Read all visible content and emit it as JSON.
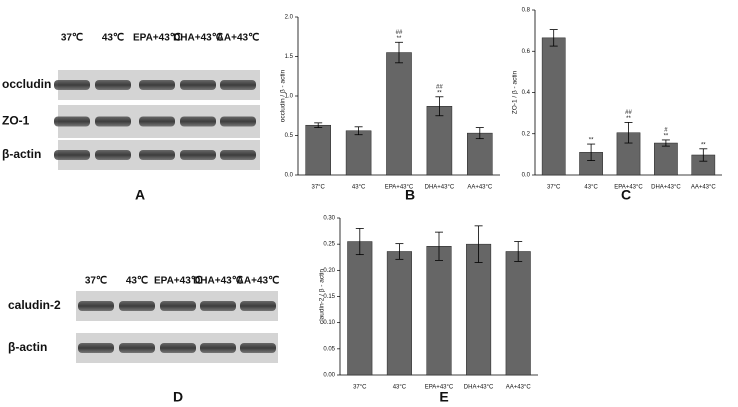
{
  "blot_a": {
    "label": "A",
    "columns": [
      "37℃",
      "43℃",
      "EPA+43℃",
      "DHA+43℃",
      "AA+43℃"
    ],
    "rows": [
      "occludin",
      "ZO-1",
      "β-actin"
    ]
  },
  "blot_d": {
    "label": "D",
    "columns": [
      "37℃",
      "43℃",
      "EPA+43℃",
      "DHA+43℃",
      "AA+43℃"
    ],
    "rows": [
      "caludin-2",
      "β-actin"
    ]
  },
  "chart_data": [
    {
      "type": "bar",
      "panel": "B",
      "y_label": "occludin / β - actin",
      "color": "#666666",
      "categories": [
        "37°C",
        "43°C",
        "EPA+43°C",
        "DHA+43°C",
        "AA+43°C"
      ],
      "values": [
        0.63,
        0.56,
        1.55,
        0.87,
        0.53
      ],
      "errors": [
        0.03,
        0.05,
        0.13,
        0.12,
        0.07
      ],
      "significance": [
        null,
        null,
        [
          "##",
          "**"
        ],
        [
          "##",
          "**"
        ],
        null
      ],
      "ylim": [
        0,
        2
      ],
      "yticks": [
        {
          "value": 0,
          "label": "0.0"
        },
        {
          "value": 0.5,
          "label": "0.5"
        },
        {
          "value": 1,
          "label": "1.0"
        },
        {
          "value": 1.5,
          "label": "1.5"
        },
        {
          "value": 2,
          "label": "2.0"
        }
      ]
    },
    {
      "type": "bar",
      "panel": "C",
      "y_label": "ZO-1 / β - actin",
      "color": "#666666",
      "categories": [
        "37°C",
        "43°C",
        "EPA+43°C",
        "DHA+43°C",
        "AA+43°C"
      ],
      "values": [
        0.665,
        0.11,
        0.205,
        0.155,
        0.097
      ],
      "errors": [
        0.04,
        0.04,
        0.05,
        0.015,
        0.03
      ],
      "significance": [
        null,
        [
          "**"
        ],
        [
          "##",
          "**"
        ],
        [
          "#",
          "**"
        ],
        [
          "**"
        ]
      ],
      "ylim": [
        0,
        0.8
      ],
      "yticks": [
        {
          "value": 0,
          "label": "0.0"
        },
        0.2,
        0.4,
        0.6,
        0.8
      ]
    },
    {
      "type": "bar",
      "panel": "E",
      "y_label": "claudin-2 / β - actin",
      "color": "#666666",
      "categories": [
        "37°C",
        "43°C",
        "EPA+43°C",
        "DHA+43°C",
        "AA+43°C"
      ],
      "values": [
        0.255,
        0.236,
        0.246,
        0.25,
        0.236
      ],
      "errors": [
        0.025,
        0.015,
        0.027,
        0.035,
        0.019
      ],
      "significance": [
        null,
        null,
        null,
        null,
        null
      ],
      "ylim": [
        0,
        0.3
      ],
      "yticks": [
        {
          "value": 0,
          "label": "0.00"
        },
        0.05,
        {
          "value": 0.1,
          "label": "0.10"
        },
        0.15,
        {
          "value": 0.2,
          "label": "0.20"
        },
        0.25,
        {
          "value": 0.3,
          "label": "0.30"
        }
      ]
    }
  ]
}
